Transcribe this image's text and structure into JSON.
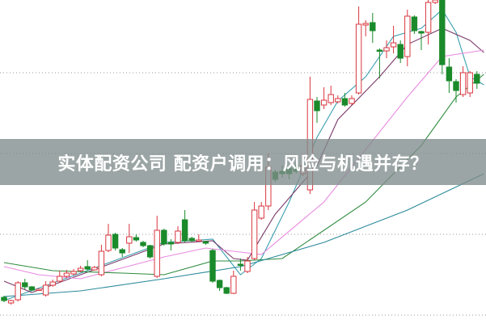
{
  "headline": "实体配资公司 配资户调用：风险与机遇并存？",
  "chart_data": {
    "type": "candlestick",
    "title": "",
    "xlabel": "",
    "ylabel": "",
    "grid": "horizontal dotted",
    "ylim": [
      0,
      410
    ],
    "colors": {
      "up": "#d9363e",
      "down": "#1a8a2a",
      "grid": "#999999",
      "banner": "#808c8c"
    },
    "candles_ohlc": [
      [
        32,
        34,
        26,
        28
      ],
      [
        25,
        29,
        23,
        28
      ],
      [
        29,
        52,
        27,
        50
      ],
      [
        50,
        55,
        42,
        45
      ],
      [
        45,
        46,
        40,
        41
      ],
      [
        41,
        43,
        40,
        42
      ],
      [
        35,
        52,
        33,
        47
      ],
      [
        47,
        54,
        45,
        51
      ],
      [
        52,
        65,
        50,
        58
      ],
      [
        58,
        66,
        56,
        62
      ],
      [
        61,
        67,
        59,
        64
      ],
      [
        65,
        71,
        63,
        68
      ],
      [
        70,
        78,
        65,
        67
      ],
      [
        66,
        71,
        65,
        69
      ],
      [
        60,
        97,
        58,
        89
      ],
      [
        90,
        123,
        88,
        109
      ],
      [
        110,
        112,
        90,
        93
      ],
      [
        91,
        93,
        82,
        87
      ],
      [
        99,
        123,
        87,
        107
      ],
      [
        106,
        110,
        101,
        103
      ],
      [
        100,
        102,
        94,
        96
      ],
      [
        96,
        97,
        80,
        82
      ],
      [
        58,
        133,
        56,
        115
      ],
      [
        115,
        117,
        96,
        98
      ],
      [
        100,
        104,
        90,
        98
      ],
      [
        100,
        120,
        98,
        114
      ],
      [
        128,
        140,
        100,
        102
      ],
      [
        105,
        107,
        101,
        102
      ],
      [
        102,
        110,
        101,
        103
      ],
      [
        101,
        102,
        97,
        99
      ],
      [
        90,
        92,
        50,
        52
      ],
      [
        53,
        54,
        40,
        44
      ],
      [
        44,
        45,
        36,
        37
      ],
      [
        37,
        65,
        36,
        58
      ],
      [
        73,
        80,
        65,
        72
      ],
      [
        64,
        82,
        62,
        77
      ],
      [
        80,
        150,
        78,
        140
      ],
      [
        130,
        150,
        128,
        145
      ],
      [
        145,
        210,
        140,
        193
      ],
      [
        187,
        190,
        175,
        178
      ],
      [
        188,
        195,
        180,
        185
      ],
      [
        192,
        195,
        178,
        185
      ],
      [
        195,
        200,
        185,
        188
      ],
      [
        185,
        210,
        182,
        195
      ],
      [
        165,
        305,
        160,
        277
      ],
      [
        275,
        280,
        248,
        263
      ],
      [
        270,
        292,
        265,
        276
      ],
      [
        273,
        294,
        270,
        283
      ],
      [
        274,
        282,
        272,
        278
      ],
      [
        278,
        285,
        268,
        270
      ],
      [
        272,
        282,
        270,
        278
      ],
      [
        285,
        392,
        283,
        370
      ],
      [
        369,
        375,
        355,
        371
      ],
      [
        372,
        384,
        347,
        362
      ],
      [
        338,
        340,
        303,
        337
      ],
      [
        337,
        350,
        328,
        341
      ],
      [
        342,
        368,
        334,
        347
      ],
      [
        345,
        350,
        322,
        328
      ],
      [
        330,
        388,
        318,
        380
      ],
      [
        379,
        381,
        358,
        362
      ],
      [
        361,
        362,
        338,
        359
      ],
      [
        360,
        400,
        345,
        397
      ],
      [
        397,
        402,
        395,
        400
      ],
      [
        402,
        405,
        308,
        320
      ],
      [
        317,
        328,
        285,
        300
      ],
      [
        299,
        302,
        273,
        288
      ],
      [
        283,
        318,
        280,
        310
      ],
      [
        285,
        312,
        280,
        310
      ],
      [
        308,
        312,
        290,
        297
      ]
    ],
    "moving_averages": [
      {
        "color": "#3a9fb0",
        "points": [
          [
            0,
            28
          ],
          [
            11,
            62
          ],
          [
            23,
            100
          ],
          [
            30,
            104
          ],
          [
            34,
            60
          ],
          [
            37,
            80
          ],
          [
            41,
            150
          ],
          [
            45,
            230
          ],
          [
            48,
            275
          ],
          [
            52,
            305
          ],
          [
            56,
            355
          ],
          [
            60,
            365
          ],
          [
            63,
            388
          ],
          [
            65,
            360
          ],
          [
            67,
            305
          ],
          [
            69,
            295
          ]
        ]
      },
      {
        "color": "#7a3a6a",
        "points": [
          [
            0,
            52
          ],
          [
            4,
            38
          ],
          [
            11,
            60
          ],
          [
            23,
            98
          ],
          [
            30,
            102
          ],
          [
            33,
            80
          ],
          [
            35,
            78
          ],
          [
            39,
            135
          ],
          [
            45,
            195
          ],
          [
            48,
            252
          ],
          [
            54,
            305
          ],
          [
            58,
            345
          ],
          [
            63,
            365
          ],
          [
            67,
            350
          ],
          [
            69,
            335
          ]
        ]
      },
      {
        "color": "#e88ae0",
        "points": [
          [
            0,
            70
          ],
          [
            5,
            60
          ],
          [
            11,
            55
          ],
          [
            23,
            82
          ],
          [
            29,
            93
          ],
          [
            34,
            88
          ],
          [
            37,
            85
          ],
          [
            46,
            150
          ],
          [
            58,
            280
          ],
          [
            63,
            330
          ],
          [
            69,
            338
          ]
        ]
      },
      {
        "color": "#2e8b3e",
        "points": [
          [
            0,
            75
          ],
          [
            7,
            65
          ],
          [
            17,
            62
          ],
          [
            23,
            60
          ],
          [
            30,
            77
          ],
          [
            34,
            77
          ],
          [
            40,
            80
          ],
          [
            52,
            150
          ],
          [
            60,
            220
          ],
          [
            65,
            280
          ],
          [
            69,
            308
          ]
        ]
      },
      {
        "color": "#2a8a9a",
        "points": [
          [
            0,
            33
          ],
          [
            11,
            40
          ],
          [
            23,
            55
          ],
          [
            34,
            70
          ],
          [
            46,
            100
          ],
          [
            58,
            140
          ],
          [
            69,
            185
          ]
        ]
      }
    ]
  }
}
